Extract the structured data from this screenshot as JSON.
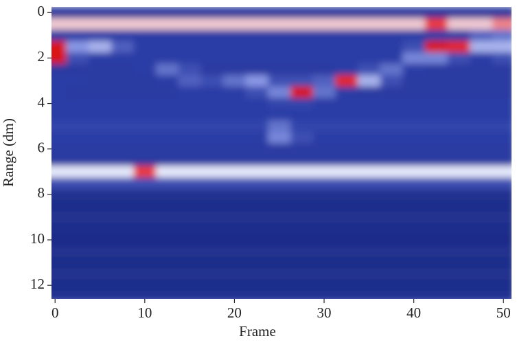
{
  "chart_data": {
    "type": "heatmap",
    "x_label": "Frame",
    "y_label": "Range (dm)",
    "x": [
      0,
      2.5,
      5,
      7.5,
      10,
      12.5,
      15,
      17.5,
      20,
      22.5,
      25,
      27.5,
      30,
      32.5,
      35,
      37.5,
      40,
      42.5,
      45,
      47.5,
      50
    ],
    "y": [
      0,
      0.5,
      1,
      1.5,
      2,
      2.5,
      3,
      3.5,
      4,
      4.5,
      5,
      5.5,
      6,
      6.5,
      7,
      7.5,
      8,
      8.5,
      9,
      9.5,
      10,
      10.5,
      11,
      11.5,
      12,
      12.5
    ],
    "z": [
      [
        0.25,
        0.25,
        0.25,
        0.25,
        0.25,
        0.25,
        0.25,
        0.25,
        0.25,
        0.25,
        0.25,
        0.25,
        0.25,
        0.25,
        0.25,
        0.25,
        0.25,
        0.25,
        0.25,
        0.25,
        0.25
      ],
      [
        0.75,
        0.75,
        0.75,
        0.75,
        0.75,
        0.75,
        0.75,
        0.75,
        0.75,
        0.75,
        0.75,
        0.75,
        0.75,
        0.75,
        0.75,
        0.75,
        0.75,
        0.85,
        0.75,
        0.75,
        0.8
      ],
      [
        0.3,
        0.3,
        0.3,
        0.3,
        0.3,
        0.3,
        0.3,
        0.3,
        0.3,
        0.3,
        0.3,
        0.3,
        0.3,
        0.3,
        0.3,
        0.3,
        0.3,
        0.3,
        0.3,
        0.4,
        0.45
      ],
      [
        0.95,
        0.55,
        0.6,
        0.4,
        0.3,
        0.3,
        0.3,
        0.3,
        0.3,
        0.3,
        0.3,
        0.3,
        0.3,
        0.3,
        0.3,
        0.3,
        0.35,
        0.95,
        0.9,
        0.6,
        0.6
      ],
      [
        0.95,
        0.35,
        0.3,
        0.3,
        0.3,
        0.3,
        0.3,
        0.3,
        0.3,
        0.3,
        0.3,
        0.3,
        0.3,
        0.3,
        0.3,
        0.3,
        0.5,
        0.5,
        0.35,
        0.3,
        0.35
      ],
      [
        0.28,
        0.28,
        0.28,
        0.28,
        0.3,
        0.45,
        0.35,
        0.28,
        0.28,
        0.28,
        0.28,
        0.28,
        0.28,
        0.3,
        0.35,
        0.45,
        0.3,
        0.28,
        0.28,
        0.28,
        0.28
      ],
      [
        0.3,
        0.3,
        0.28,
        0.28,
        0.28,
        0.3,
        0.4,
        0.35,
        0.45,
        0.55,
        0.35,
        0.35,
        0.4,
        0.9,
        0.6,
        0.35,
        0.28,
        0.28,
        0.28,
        0.28,
        0.28
      ],
      [
        0.3,
        0.28,
        0.28,
        0.28,
        0.28,
        0.28,
        0.3,
        0.3,
        0.3,
        0.35,
        0.5,
        0.95,
        0.45,
        0.3,
        0.28,
        0.28,
        0.28,
        0.28,
        0.28,
        0.28,
        0.28
      ],
      [
        0.3,
        0.3,
        0.3,
        0.3,
        0.3,
        0.3,
        0.3,
        0.3,
        0.3,
        0.3,
        0.32,
        0.32,
        0.3,
        0.3,
        0.3,
        0.3,
        0.3,
        0.3,
        0.3,
        0.3,
        0.3
      ],
      [
        0.3,
        0.3,
        0.3,
        0.3,
        0.3,
        0.3,
        0.3,
        0.3,
        0.3,
        0.3,
        0.3,
        0.3,
        0.3,
        0.3,
        0.3,
        0.3,
        0.3,
        0.3,
        0.3,
        0.3,
        0.3
      ],
      [
        0.32,
        0.32,
        0.32,
        0.32,
        0.32,
        0.32,
        0.32,
        0.32,
        0.32,
        0.32,
        0.45,
        0.32,
        0.32,
        0.32,
        0.32,
        0.32,
        0.32,
        0.32,
        0.32,
        0.32,
        0.32
      ],
      [
        0.3,
        0.3,
        0.3,
        0.3,
        0.3,
        0.3,
        0.3,
        0.3,
        0.3,
        0.3,
        0.5,
        0.35,
        0.3,
        0.3,
        0.3,
        0.3,
        0.3,
        0.3,
        0.3,
        0.3,
        0.3
      ],
      [
        0.28,
        0.28,
        0.28,
        0.28,
        0.28,
        0.28,
        0.28,
        0.28,
        0.28,
        0.28,
        0.28,
        0.28,
        0.28,
        0.28,
        0.28,
        0.28,
        0.28,
        0.28,
        0.28,
        0.28,
        0.28
      ],
      [
        0.28,
        0.28,
        0.28,
        0.28,
        0.28,
        0.28,
        0.28,
        0.28,
        0.28,
        0.28,
        0.28,
        0.28,
        0.28,
        0.28,
        0.28,
        0.28,
        0.28,
        0.28,
        0.28,
        0.28,
        0.28
      ],
      [
        0.7,
        0.7,
        0.7,
        0.7,
        0.85,
        0.7,
        0.7,
        0.7,
        0.7,
        0.7,
        0.7,
        0.7,
        0.7,
        0.7,
        0.7,
        0.7,
        0.7,
        0.7,
        0.7,
        0.7,
        0.7
      ],
      [
        0.35,
        0.35,
        0.35,
        0.35,
        0.35,
        0.35,
        0.35,
        0.35,
        0.35,
        0.35,
        0.35,
        0.35,
        0.35,
        0.35,
        0.35,
        0.35,
        0.35,
        0.35,
        0.35,
        0.35,
        0.35
      ],
      [
        0.2,
        0.2,
        0.2,
        0.2,
        0.2,
        0.2,
        0.2,
        0.2,
        0.2,
        0.2,
        0.2,
        0.2,
        0.2,
        0.2,
        0.2,
        0.2,
        0.2,
        0.2,
        0.2,
        0.2,
        0.2
      ],
      [
        0.18,
        0.18,
        0.18,
        0.18,
        0.18,
        0.18,
        0.18,
        0.18,
        0.18,
        0.18,
        0.18,
        0.18,
        0.18,
        0.18,
        0.18,
        0.18,
        0.18,
        0.18,
        0.18,
        0.18,
        0.18
      ],
      [
        0.2,
        0.2,
        0.2,
        0.2,
        0.2,
        0.2,
        0.2,
        0.2,
        0.2,
        0.2,
        0.2,
        0.2,
        0.2,
        0.2,
        0.2,
        0.2,
        0.2,
        0.2,
        0.2,
        0.2,
        0.2
      ],
      [
        0.18,
        0.18,
        0.18,
        0.18,
        0.18,
        0.18,
        0.18,
        0.18,
        0.18,
        0.18,
        0.18,
        0.18,
        0.18,
        0.18,
        0.18,
        0.18,
        0.18,
        0.18,
        0.18,
        0.18,
        0.18
      ],
      [
        0.17,
        0.17,
        0.17,
        0.17,
        0.17,
        0.17,
        0.17,
        0.17,
        0.17,
        0.17,
        0.17,
        0.17,
        0.17,
        0.17,
        0.17,
        0.17,
        0.17,
        0.17,
        0.17,
        0.17,
        0.17
      ],
      [
        0.2,
        0.2,
        0.2,
        0.2,
        0.2,
        0.2,
        0.2,
        0.2,
        0.2,
        0.2,
        0.2,
        0.2,
        0.2,
        0.2,
        0.2,
        0.2,
        0.2,
        0.2,
        0.2,
        0.2,
        0.2
      ],
      [
        0.18,
        0.18,
        0.18,
        0.18,
        0.18,
        0.18,
        0.18,
        0.18,
        0.18,
        0.18,
        0.18,
        0.18,
        0.18,
        0.18,
        0.18,
        0.18,
        0.18,
        0.18,
        0.18,
        0.18,
        0.18
      ],
      [
        0.2,
        0.2,
        0.2,
        0.2,
        0.2,
        0.2,
        0.2,
        0.2,
        0.2,
        0.2,
        0.2,
        0.2,
        0.2,
        0.2,
        0.2,
        0.2,
        0.2,
        0.2,
        0.2,
        0.2,
        0.2
      ],
      [
        0.18,
        0.18,
        0.18,
        0.18,
        0.18,
        0.18,
        0.18,
        0.18,
        0.18,
        0.18,
        0.18,
        0.18,
        0.18,
        0.18,
        0.18,
        0.18,
        0.18,
        0.18,
        0.18,
        0.18,
        0.18
      ],
      [
        0.22,
        0.22,
        0.22,
        0.22,
        0.22,
        0.22,
        0.22,
        0.22,
        0.22,
        0.22,
        0.22,
        0.22,
        0.22,
        0.22,
        0.22,
        0.22,
        0.22,
        0.22,
        0.22,
        0.22,
        0.22
      ]
    ],
    "colorscale": [
      [
        0,
        "#0c1560"
      ],
      [
        0.3,
        "#2b3da6"
      ],
      [
        0.55,
        "#8a98e6"
      ],
      [
        0.72,
        "#f4f6ff"
      ],
      [
        0.85,
        "#ec3b3b"
      ],
      [
        1,
        "#d00000"
      ]
    ],
    "xlim": [
      -0.4,
      50.9
    ],
    "ylim": [
      -0.25,
      12.6
    ],
    "y_inverted": true,
    "xticks": [
      0,
      10,
      20,
      30,
      40,
      50
    ],
    "yticks": [
      0,
      2,
      4,
      6,
      8,
      10,
      12
    ]
  }
}
